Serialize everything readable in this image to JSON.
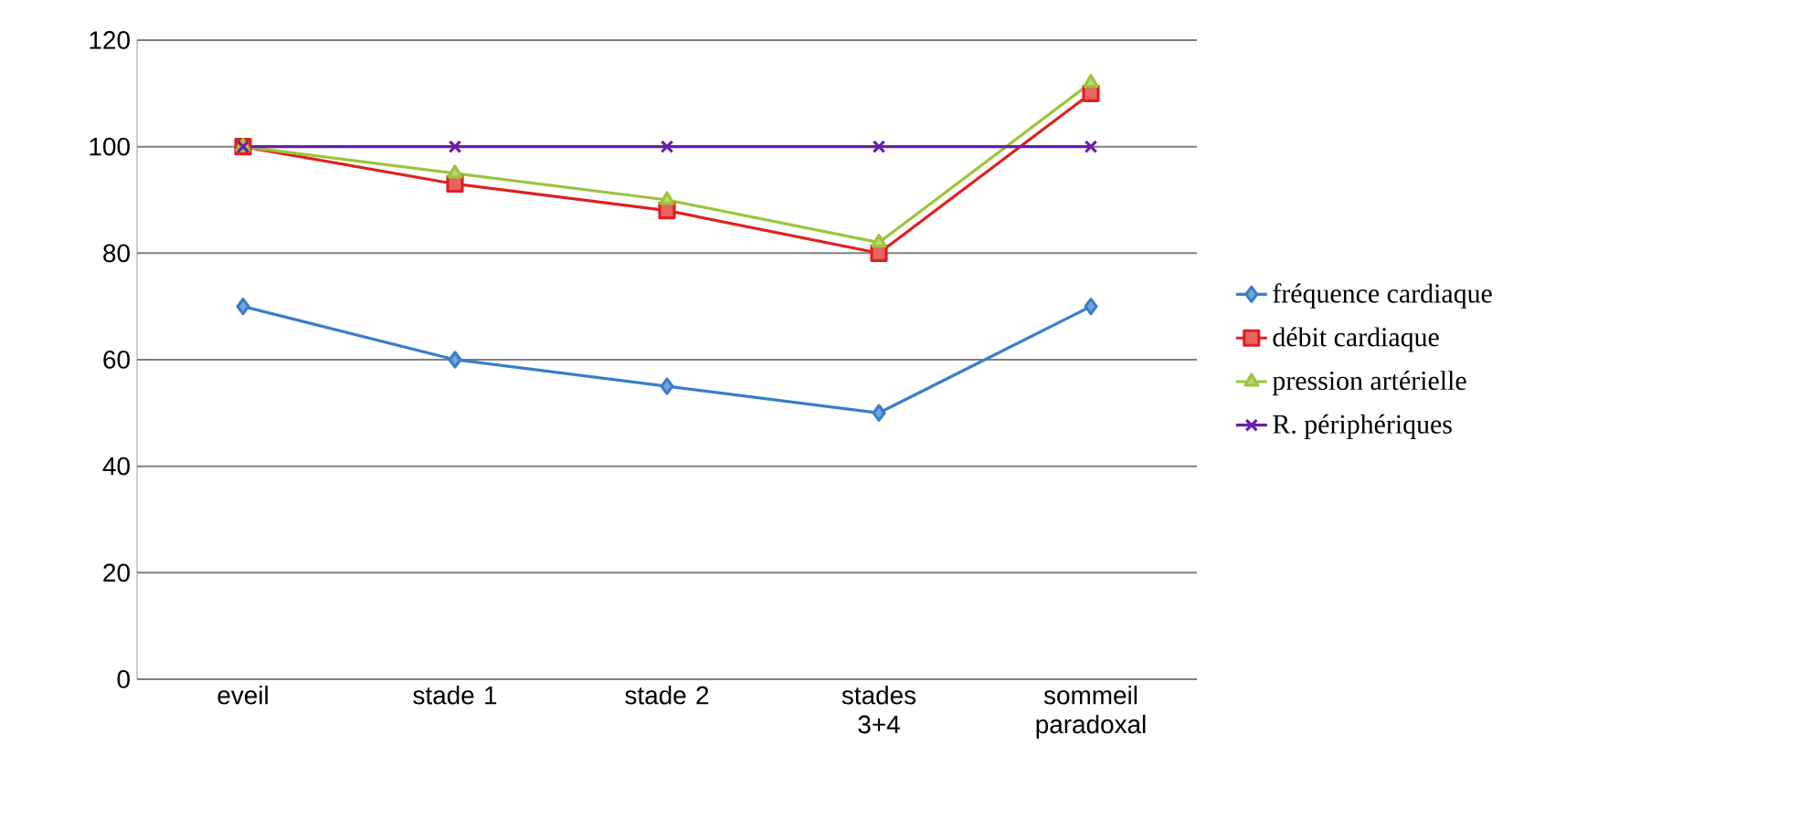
{
  "chart_data": {
    "type": "line",
    "categories": [
      "eveil",
      "stade 1",
      "stade 2",
      "stades 3+4",
      "sommeil paradoxal"
    ],
    "series": [
      {
        "name": "fréquence cardiaque",
        "color": "#3a7dc9",
        "marker": "diamond",
        "values": [
          70,
          60,
          55,
          50,
          70
        ]
      },
      {
        "name": "débit cardiaque",
        "color": "#e02020",
        "marker": "square",
        "values": [
          100,
          93,
          88,
          80,
          110
        ]
      },
      {
        "name": "pression artérielle",
        "color": "#9bc53a",
        "marker": "triangle",
        "values": [
          100,
          95,
          90,
          82,
          112
        ]
      },
      {
        "name": "R. périphériques",
        "color": "#6a1fa8",
        "marker": "cross",
        "values": [
          100,
          100,
          100,
          100,
          100
        ]
      }
    ],
    "ylim": [
      0,
      120
    ],
    "yticks": [
      0,
      20,
      40,
      60,
      80,
      100,
      120
    ],
    "grid": "y",
    "legend": "right",
    "line_style": "solid"
  }
}
